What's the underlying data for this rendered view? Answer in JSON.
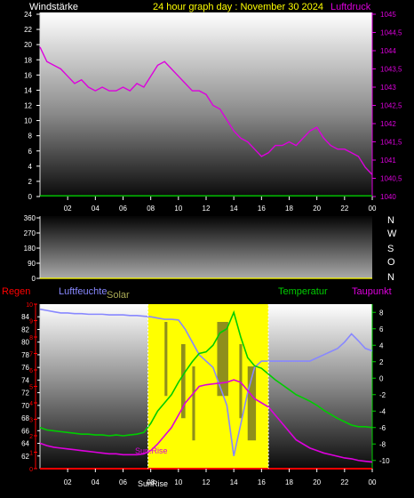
{
  "top": {
    "left_title": "Windstärke",
    "center_title": "24 hour graph day : November 30 2024",
    "right_title": "Luftdruck",
    "colors": {
      "wind": "#00cc00",
      "pressure": "#dd00dd",
      "title": "#ffff00",
      "tick": "#ffffff"
    }
  },
  "mid": {
    "compass_labels": [
      "N",
      "W",
      "S",
      "O",
      "N"
    ]
  },
  "bottom": {
    "left_title": "Regen",
    "hum_title": "Luftfeuchte",
    "solar_title": "Solar",
    "temp_title": "Temperatur",
    "dew_title": "Taupunkt",
    "sunrise_label": "SunRise",
    "sunset_label": "Sun.Rise",
    "colors": {
      "rain": "#ff0000",
      "humidity": "#8888ff",
      "solar": "#ffff00",
      "temperature": "#00cc00",
      "dewpoint": "#dd00dd"
    }
  },
  "chart_data": [
    {
      "type": "line",
      "title": "24 hour graph day : November 30 2024",
      "x": [
        0,
        0.5,
        1,
        1.5,
        2,
        2.5,
        3,
        3.5,
        4,
        4.5,
        5,
        5.5,
        6,
        6.5,
        7,
        7.5,
        8,
        8.5,
        9,
        9.5,
        10,
        10.5,
        11,
        11.5,
        12,
        12.5,
        13,
        13.5,
        14,
        14.5,
        15,
        15.5,
        16,
        16.5,
        17,
        17.5,
        18,
        18.5,
        19,
        19.5,
        20,
        20.5,
        21,
        21.5,
        22,
        22.5,
        23,
        23.5,
        24
      ],
      "x_ticks": [
        "02",
        "04",
        "06",
        "08",
        "10",
        "12",
        "14",
        "16",
        "18",
        "20",
        "22",
        "00"
      ],
      "left_axis": {
        "label": "Windstärke",
        "ylim": [
          0,
          24
        ],
        "ticks": [
          "0",
          "2",
          "4",
          "6",
          "8",
          "10",
          "12",
          "14",
          "16",
          "18",
          "20",
          "22",
          "24"
        ]
      },
      "right_axis": {
        "label": "Luftdruck",
        "ylim": [
          1040,
          1045
        ],
        "ticks": [
          "1040",
          "1040,5",
          "1041",
          "1041,5",
          "1042",
          "1042,5",
          "1043",
          "1043,5",
          "1044",
          "1044,5",
          "1045"
        ]
      },
      "series": [
        {
          "name": "Luftdruck",
          "axis": "right",
          "values": [
            1044.1,
            1043.7,
            1043.6,
            1043.5,
            1043.3,
            1043.1,
            1043.2,
            1043.0,
            1042.9,
            1043.0,
            1042.9,
            1042.9,
            1043.0,
            1042.9,
            1043.1,
            1043.0,
            1043.3,
            1043.6,
            1043.7,
            1043.5,
            1043.3,
            1043.1,
            1042.9,
            1042.9,
            1042.8,
            1042.5,
            1042.4,
            1042.1,
            1041.8,
            1041.6,
            1041.5,
            1041.3,
            1041.1,
            1041.2,
            1041.4,
            1041.4,
            1041.5,
            1041.4,
            1041.6,
            1041.8,
            1041.9,
            1041.6,
            1041.4,
            1041.3,
            1041.3,
            1041.2,
            1041.1,
            1040.8,
            1040.6
          ]
        },
        {
          "name": "Windstärke",
          "axis": "left",
          "values": [
            0.1,
            0.1,
            0.1,
            0.1,
            0.1,
            0.1,
            0.1,
            0.1,
            0.1,
            0.1,
            0.1,
            0.1,
            0.1,
            0.1,
            0.1,
            0.1,
            0.1,
            0.1,
            0.1,
            0.1,
            0.1,
            0.1,
            0.1,
            0.1,
            0.1,
            0.1,
            0.1,
            0.1,
            0.1,
            0.1,
            0.1,
            0.1,
            0.1,
            0.1,
            0.1,
            0.1,
            0.1,
            0.1,
            0.1,
            0.1,
            0.1,
            0.1,
            0.1,
            0.1,
            0.1,
            0.1,
            0.1,
            0.1,
            0.1
          ]
        }
      ]
    },
    {
      "type": "scatter",
      "x_ticks": [],
      "left_axis": {
        "ylim": [
          0,
          360
        ],
        "ticks": [
          "0",
          "90",
          "180",
          "270",
          "360"
        ]
      },
      "series": []
    },
    {
      "type": "line",
      "x": [
        0,
        0.5,
        1,
        1.5,
        2,
        2.5,
        3,
        3.5,
        4,
        4.5,
        5,
        5.5,
        6,
        6.5,
        7,
        7.5,
        8,
        8.5,
        9,
        9.5,
        10,
        10.5,
        11,
        11.5,
        12,
        12.5,
        13,
        13.5,
        14,
        14.5,
        15,
        15.5,
        16,
        16.5,
        17,
        17.5,
        18,
        18.5,
        19,
        19.5,
        20,
        20.5,
        21,
        21.5,
        22,
        22.5,
        23,
        23.5,
        24
      ],
      "x_ticks": [
        "02",
        "04",
        "06",
        "08",
        "10",
        "12",
        "14",
        "16",
        "18",
        "20",
        "22",
        "00"
      ],
      "left_axis": {
        "label": "Luftfeuchte",
        "ylim": [
          60,
          86
        ],
        "ticks": [
          "62",
          "64",
          "66",
          "68",
          "70",
          "72",
          "74",
          "76",
          "78",
          "80",
          "82",
          "84"
        ]
      },
      "rain_axis": {
        "label": "Regen",
        "ticks": [
          "0",
          "1",
          "2",
          "3",
          "4",
          "5",
          "6",
          "7",
          "8",
          "9",
          "10"
        ]
      },
      "right_axis": {
        "label": "Temperatur",
        "ylim": [
          -11,
          9
        ],
        "ticks": [
          "8",
          "6",
          "4",
          "2",
          "0",
          "-2",
          "-4",
          "-6",
          "-8",
          "-10"
        ]
      },
      "solar_band": {
        "from": 7.8,
        "to": 16.5
      },
      "series": [
        {
          "name": "Luftfeuchte",
          "axis": "left",
          "values": [
            85.2,
            85,
            84.8,
            84.6,
            84.6,
            84.5,
            84.5,
            84.4,
            84.4,
            84.4,
            84.3,
            84.3,
            84.3,
            84.2,
            84.2,
            84.1,
            84.0,
            83.8,
            83.6,
            83.6,
            83.5,
            82,
            80,
            78,
            77,
            76,
            73,
            70,
            62,
            67,
            72,
            76,
            77,
            77,
            77,
            77,
            77,
            77,
            77,
            77,
            77.5,
            78,
            78.5,
            79,
            80,
            81.3,
            80.2,
            79,
            78.6
          ]
        },
        {
          "name": "Temperatur",
          "axis": "right",
          "values": [
            -6,
            -6.3,
            -6.4,
            -6.5,
            -6.6,
            -6.7,
            -6.8,
            -6.8,
            -6.9,
            -6.9,
            -7.0,
            -6.9,
            -7.0,
            -6.9,
            -6.8,
            -6.6,
            -5.5,
            -4,
            -3,
            -2,
            -0.5,
            0.8,
            2,
            3,
            3.2,
            4,
            5.5,
            6,
            8,
            5,
            2.5,
            1.5,
            1.2,
            0.5,
            -0.2,
            -0.8,
            -1.4,
            -2,
            -2.4,
            -2.8,
            -3.3,
            -3.9,
            -4.4,
            -4.9,
            -5.3,
            -5.7,
            -5.9,
            -5.9,
            -6
          ]
        },
        {
          "name": "Taupunkt",
          "axis": "right",
          "values": [
            -7.9,
            -8.2,
            -8.4,
            -8.5,
            -8.6,
            -8.7,
            -8.8,
            -8.9,
            -9,
            -9.1,
            -9.2,
            -9.2,
            -9.3,
            -9.3,
            -9.3,
            -9.2,
            -8.8,
            -8,
            -7,
            -6,
            -4.5,
            -3,
            -2,
            -1,
            -0.8,
            -0.7,
            -0.6,
            -0.5,
            -0.2,
            -0.5,
            -1.5,
            -2.5,
            -3,
            -3.5,
            -4.5,
            -5.5,
            -6.5,
            -7.5,
            -8,
            -8.5,
            -8.8,
            -9.1,
            -9.3,
            -9.5,
            -9.7,
            -9.8,
            -10.0,
            -10.1,
            -10.2
          ]
        },
        {
          "name": "Regen",
          "axis": "rain",
          "values": [
            0,
            0,
            0,
            0,
            0,
            0,
            0,
            0,
            0,
            0,
            0,
            0,
            0,
            0,
            0,
            0,
            0,
            0,
            0,
            0,
            0,
            0,
            0,
            0,
            0,
            0,
            0,
            0,
            0,
            0,
            0,
            0,
            0,
            0,
            0,
            0,
            0,
            0,
            0,
            0,
            0,
            0,
            0,
            0,
            0,
            0,
            0,
            0,
            0
          ]
        }
      ]
    }
  ]
}
